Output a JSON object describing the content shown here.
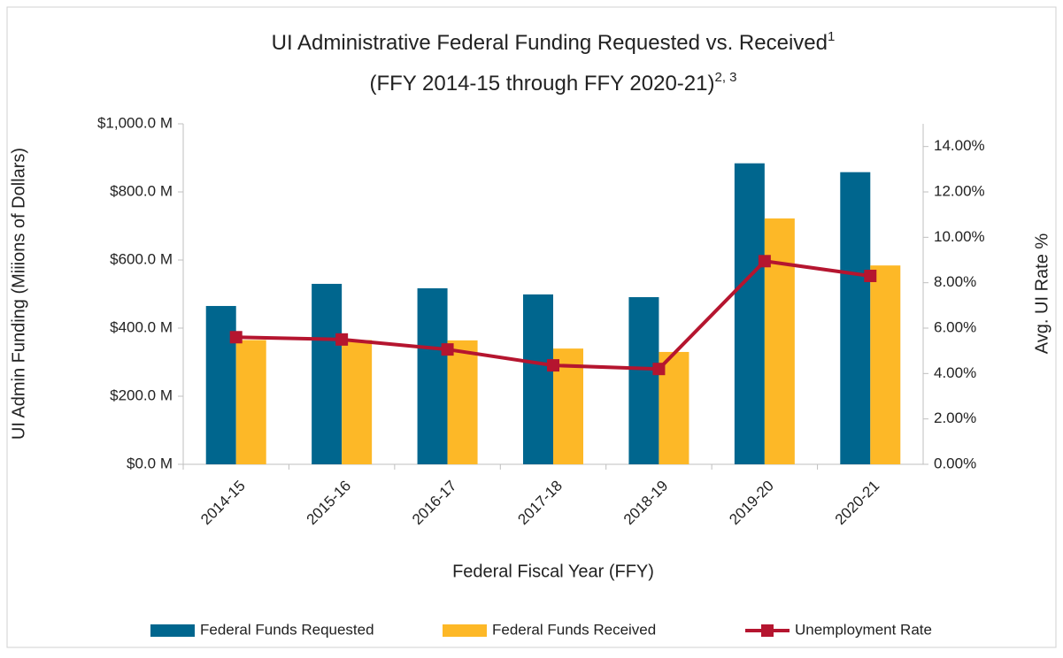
{
  "chart_data": {
    "type": "bar_line",
    "title": [
      "UI Administrative Federal Funding Requested vs. Received",
      "(FFY 2014-15 through FFY 2020-21)"
    ],
    "title_superscripts": [
      "1",
      "2, 3"
    ],
    "x_label": "Federal Fiscal Year (FFY)",
    "y_label": "UI Admin Funding (Miiions of Dollars)",
    "y2_label": "Avg. UI Rate %",
    "categories": [
      "2014-15",
      "2015-16",
      "2016-17",
      "2017-18",
      "2018-19",
      "2019-20",
      "2020-21"
    ],
    "series": [
      {
        "name": "Federal Funds Requested",
        "type": "bar",
        "color": "#00668e",
        "values": [
          465,
          530,
          517,
          499,
          491,
          884,
          858
        ]
      },
      {
        "name": "Federal Funds Received",
        "type": "bar",
        "color": "#fdb827",
        "values": [
          365,
          365,
          364,
          340,
          330,
          722,
          584
        ]
      },
      {
        "name": "Unemployment Rate",
        "type": "line",
        "axis": "y2",
        "color": "#b5152f",
        "values": [
          5.6,
          5.5,
          5.06,
          4.36,
          4.2,
          8.95,
          8.3
        ]
      }
    ],
    "ylim": [
      0,
      1000
    ],
    "yticks": [
      {
        "value": 0,
        "label": "$0.0 M"
      },
      {
        "value": 200,
        "label": "$200.0 M"
      },
      {
        "value": 400,
        "label": "$400.0 M"
      },
      {
        "value": 600,
        "label": "$600.0 M"
      },
      {
        "value": 800,
        "label": "$800.0 M"
      },
      {
        "value": 1000,
        "label": "$1,000.0 M"
      }
    ],
    "y2lim": [
      0,
      15
    ],
    "y2ticks": [
      {
        "value": 0,
        "label": "0.00%"
      },
      {
        "value": 2,
        "label": "2.00%"
      },
      {
        "value": 4,
        "label": "4.00%"
      },
      {
        "value": 6,
        "label": "6.00%"
      },
      {
        "value": 8,
        "label": "8.00%"
      },
      {
        "value": 10,
        "label": "10.00%"
      },
      {
        "value": 12,
        "label": "12.00%"
      },
      {
        "value": 14,
        "label": "14.00%"
      }
    ],
    "grid": false,
    "legend": "bottom"
  }
}
